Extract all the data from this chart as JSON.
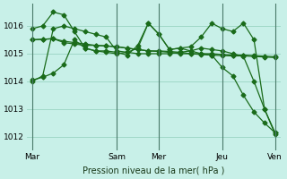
{
  "bg_color": "#c8f0e8",
  "grid_color": "#a0d8c8",
  "line_color": "#1a6b1a",
  "marker_color": "#1a6b1a",
  "xlabel": "Pression niveau de la mer( hPa )",
  "ylabel": "",
  "ylim": [
    1011.5,
    1016.8
  ],
  "yticks": [
    1012,
    1013,
    1014,
    1015,
    1016
  ],
  "x_tick_labels": [
    "Mar",
    "Sam",
    "Mer",
    "Jeu",
    "Ven"
  ],
  "x_tick_positions": [
    0,
    8,
    12,
    18,
    23
  ],
  "series": [
    [
      1014.0,
      1014.2,
      1015.9,
      1016.0,
      1015.9,
      1015.8,
      1015.7,
      1015.6,
      1015.1,
      1015.05,
      1015.0,
      1015.0,
      1015.0,
      1015.0,
      1015.05,
      1015.1,
      1015.2,
      1015.15,
      1015.1,
      1015.0,
      1014.9,
      1014.0,
      1013.0,
      1012.1
    ],
    [
      1015.5,
      1015.52,
      1015.54,
      1015.4,
      1015.35,
      1015.3,
      1015.3,
      1015.28,
      1015.25,
      1015.2,
      1015.15,
      1015.1,
      1015.1,
      1015.08,
      1015.05,
      1015.0,
      1015.0,
      1015.0,
      1014.97,
      1014.95,
      1014.95,
      1014.93,
      1014.91,
      1014.89
    ],
    [
      1015.5,
      1015.52,
      1015.54,
      1015.45,
      1015.4,
      1015.35,
      1015.3,
      1015.28,
      1015.25,
      1015.2,
      1015.15,
      1015.1,
      1015.08,
      1015.05,
      1015.0,
      1015.0,
      1014.97,
      1014.95,
      1014.93,
      1014.92,
      1014.92,
      1014.9,
      1014.88,
      1014.86
    ],
    [
      1015.9,
      1016.0,
      1016.5,
      1016.4,
      1015.8,
      1015.2,
      1015.1,
      1015.1,
      1015.05,
      1014.95,
      1015.3,
      1016.1,
      1015.7,
      1015.15,
      1015.2,
      1015.25,
      1015.6,
      1016.1,
      1015.9,
      1015.8,
      1016.1,
      1015.5,
      1013.0,
      1012.15
    ],
    [
      1014.05,
      1014.15,
      1014.3,
      1014.6,
      1015.5,
      1015.2,
      1015.1,
      1015.05,
      1015.0,
      1015.05,
      1015.2,
      1016.1,
      1015.7,
      1015.15,
      1015.2,
      1015.1,
      1015.0,
      1014.95,
      1014.5,
      1014.2,
      1013.5,
      1012.9,
      1012.5,
      1012.15
    ]
  ]
}
